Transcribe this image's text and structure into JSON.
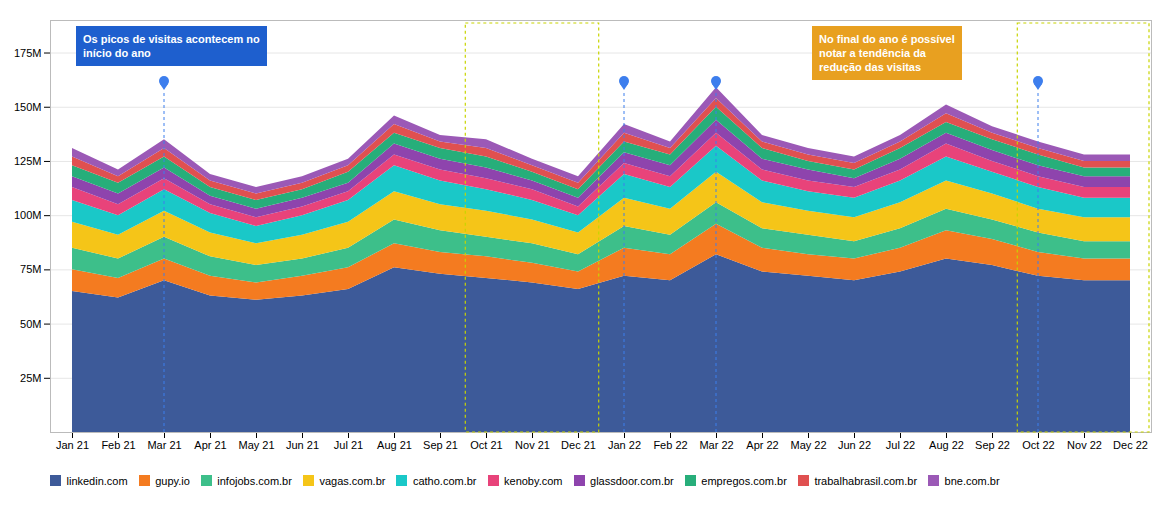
{
  "chart_data": {
    "type": "area",
    "stacked": true,
    "categories": [
      "Jan 21",
      "Feb 21",
      "Mar 21",
      "Apr 21",
      "May 21",
      "Jun 21",
      "Jul 21",
      "Aug 21",
      "Sep 21",
      "Oct 21",
      "Nov 21",
      "Dec 21",
      "Jan 22",
      "Feb 22",
      "Mar 22",
      "Apr 22",
      "May 22",
      "Jun 22",
      "Jul 22",
      "Aug 22",
      "Sep 22",
      "Oct 22",
      "Nov 22",
      "Dec 22"
    ],
    "series": [
      {
        "name": "linkedin.com",
        "color": "#3d5a99",
        "values": [
          65,
          62,
          70,
          63,
          61,
          63,
          66,
          76,
          73,
          71,
          69,
          66,
          72,
          70,
          82,
          74,
          72,
          70,
          74,
          80,
          77,
          72,
          70,
          70
        ]
      },
      {
        "name": "gupy.io",
        "color": "#f47b20",
        "values": [
          10,
          9,
          10,
          9,
          8,
          9,
          10,
          11,
          10,
          10,
          9,
          8,
          13,
          12,
          14,
          11,
          10,
          10,
          11,
          13,
          12,
          11,
          10,
          10
        ]
      },
      {
        "name": "infojobs.com.br",
        "color": "#3dbf8a",
        "values": [
          10,
          9,
          10,
          9,
          8,
          8,
          9,
          11,
          10,
          9,
          9,
          8,
          10,
          9,
          10,
          9,
          9,
          8,
          9,
          10,
          9,
          9,
          8,
          8
        ]
      },
      {
        "name": "vagas.com.br",
        "color": "#f5c518",
        "values": [
          12,
          11,
          12,
          11,
          10,
          11,
          12,
          13,
          12,
          12,
          11,
          10,
          13,
          12,
          14,
          12,
          11,
          11,
          12,
          13,
          12,
          11,
          11,
          11
        ]
      },
      {
        "name": "catho.com.br",
        "color": "#1ac8c8",
        "values": [
          10,
          9,
          10,
          9,
          8,
          9,
          10,
          12,
          11,
          10,
          9,
          8,
          11,
          10,
          12,
          10,
          9,
          9,
          10,
          11,
          10,
          10,
          9,
          9
        ]
      },
      {
        "name": "kenoby.com",
        "color": "#e8437a",
        "values": [
          6,
          5,
          5,
          4,
          4,
          4,
          4,
          5,
          5,
          5,
          5,
          4,
          5,
          5,
          6,
          5,
          5,
          5,
          5,
          6,
          5,
          5,
          5,
          5
        ]
      },
      {
        "name": "glassdoor.com.br",
        "color": "#8e44ad",
        "values": [
          5,
          5,
          5,
          4,
          4,
          4,
          4,
          5,
          5,
          5,
          4,
          4,
          5,
          5,
          6,
          5,
          5,
          4,
          5,
          5,
          5,
          5,
          5,
          5
        ]
      },
      {
        "name": "empregos.com.br",
        "color": "#27ae7a",
        "values": [
          5,
          5,
          5,
          4,
          4,
          4,
          5,
          5,
          5,
          5,
          4,
          4,
          5,
          5,
          6,
          5,
          4,
          4,
          5,
          5,
          5,
          5,
          4,
          4
        ]
      },
      {
        "name": "trabalhabrasil.com.br",
        "color": "#e05050",
        "values": [
          4,
          3,
          4,
          3,
          3,
          3,
          3,
          4,
          3,
          4,
          3,
          3,
          4,
          3,
          4,
          3,
          3,
          3,
          3,
          4,
          3,
          3,
          3,
          3
        ]
      },
      {
        "name": "bne.com.br",
        "color": "#9b59b6",
        "values": [
          4,
          3,
          4,
          3,
          3,
          3,
          3,
          4,
          3,
          4,
          3,
          3,
          4,
          3,
          5,
          3,
          3,
          3,
          3,
          4,
          3,
          3,
          3,
          3
        ]
      }
    ],
    "ylim": [
      0,
      190
    ],
    "yticks": [
      {
        "value": 25,
        "label": "25M"
      },
      {
        "value": 50,
        "label": "50M"
      },
      {
        "value": 75,
        "label": "75M"
      },
      {
        "value": 100,
        "label": "100M"
      },
      {
        "value": 125,
        "label": "125M"
      },
      {
        "value": 150,
        "label": "150M"
      },
      {
        "value": 175,
        "label": "175M"
      }
    ],
    "grid": true,
    "legend": "bottom",
    "annotations": [
      "Os picos de visitas acontecem no\ninício do ano",
      "No final do ano é possível\nnotar a tendência da\nredução das visitas"
    ]
  }
}
